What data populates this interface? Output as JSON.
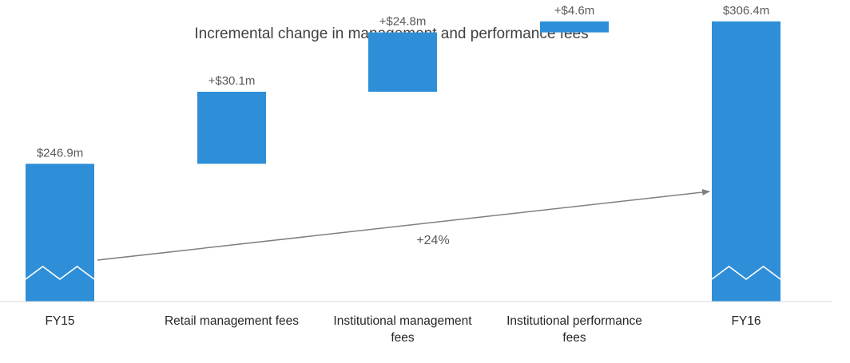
{
  "chart_data": {
    "type": "waterfall",
    "title": "Incremental change in management and performance fees",
    "categories": [
      [
        "FY15"
      ],
      [
        "Retail management fees"
      ],
      [
        "Institutional management",
        "fees"
      ],
      [
        "Institutional performance",
        "fees"
      ],
      [
        "FY16"
      ]
    ],
    "kinds": [
      "total",
      "delta",
      "delta",
      "delta",
      "total"
    ],
    "values": [
      246.9,
      30.1,
      24.8,
      4.6,
      306.4
    ],
    "data_labels": [
      "$246.9m",
      "+$30.1m",
      "+$24.8m",
      "+$4.6m",
      "$306.4m"
    ],
    "growth_annotation": "+24%",
    "axis_break_on_totals": true,
    "colors": {
      "bar": "#2E8FD8",
      "arrow": "#7F7F7F",
      "axis": "#D9D9D9"
    }
  }
}
